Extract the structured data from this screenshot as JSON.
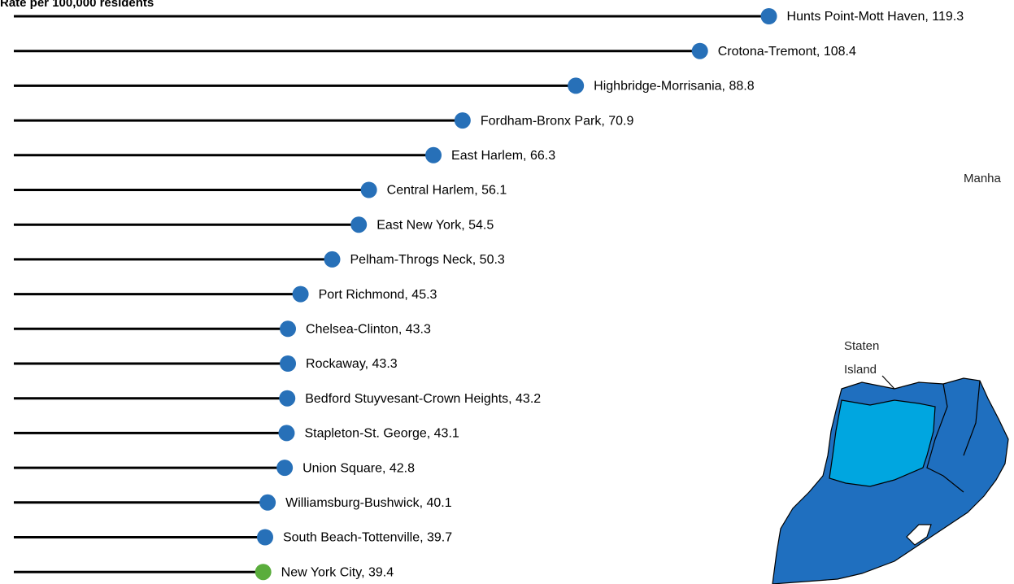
{
  "chart_data": {
    "type": "lollipop",
    "title": "Rate per 100,000 residents",
    "values": [
      119.3,
      108.4,
      88.8,
      70.9,
      66.3,
      56.1,
      54.5,
      50.3,
      45.3,
      43.3,
      43.3,
      43.2,
      43.1,
      42.8,
      40.1,
      39.7,
      39.4
    ],
    "value_labels": [
      "Hunts Point-Mott Haven, 119.3",
      "Crotona-Tremont, 108.4",
      "Highbridge-Morrisania, 88.8",
      "Fordham-Bronx Park, 70.9",
      "East Harlem, 66.3",
      "Central Harlem, 56.1",
      "East New York, 54.5",
      "Pelham-Throgs Neck, 50.3",
      "Port Richmond, 45.3",
      "Chelsea-Clinton, 43.3",
      "Rockaway, 43.3",
      "Bedford Stuyvesant-Crown Heights, 43.2",
      "Stapleton-St. George, 43.1",
      "Union Square, 42.8",
      "Williamsburg-Bushwick, 40.1",
      "South Beach-Tottenville, 39.7",
      "New York City, 39.4"
    ],
    "colors": [
      "#2770b8",
      "#2770b8",
      "#2770b8",
      "#2770b8",
      "#2770b8",
      "#2770b8",
      "#2770b8",
      "#2770b8",
      "#2770b8",
      "#2770b8",
      "#2770b8",
      "#2770b8",
      "#2770b8",
      "#2770b8",
      "#2770b8",
      "#2770b8",
      "#5aad3c"
    ],
    "line_color": "#000000",
    "xlim": [
      0,
      120
    ],
    "map_labels": [
      "Manha",
      "Staten",
      "Island"
    ]
  }
}
